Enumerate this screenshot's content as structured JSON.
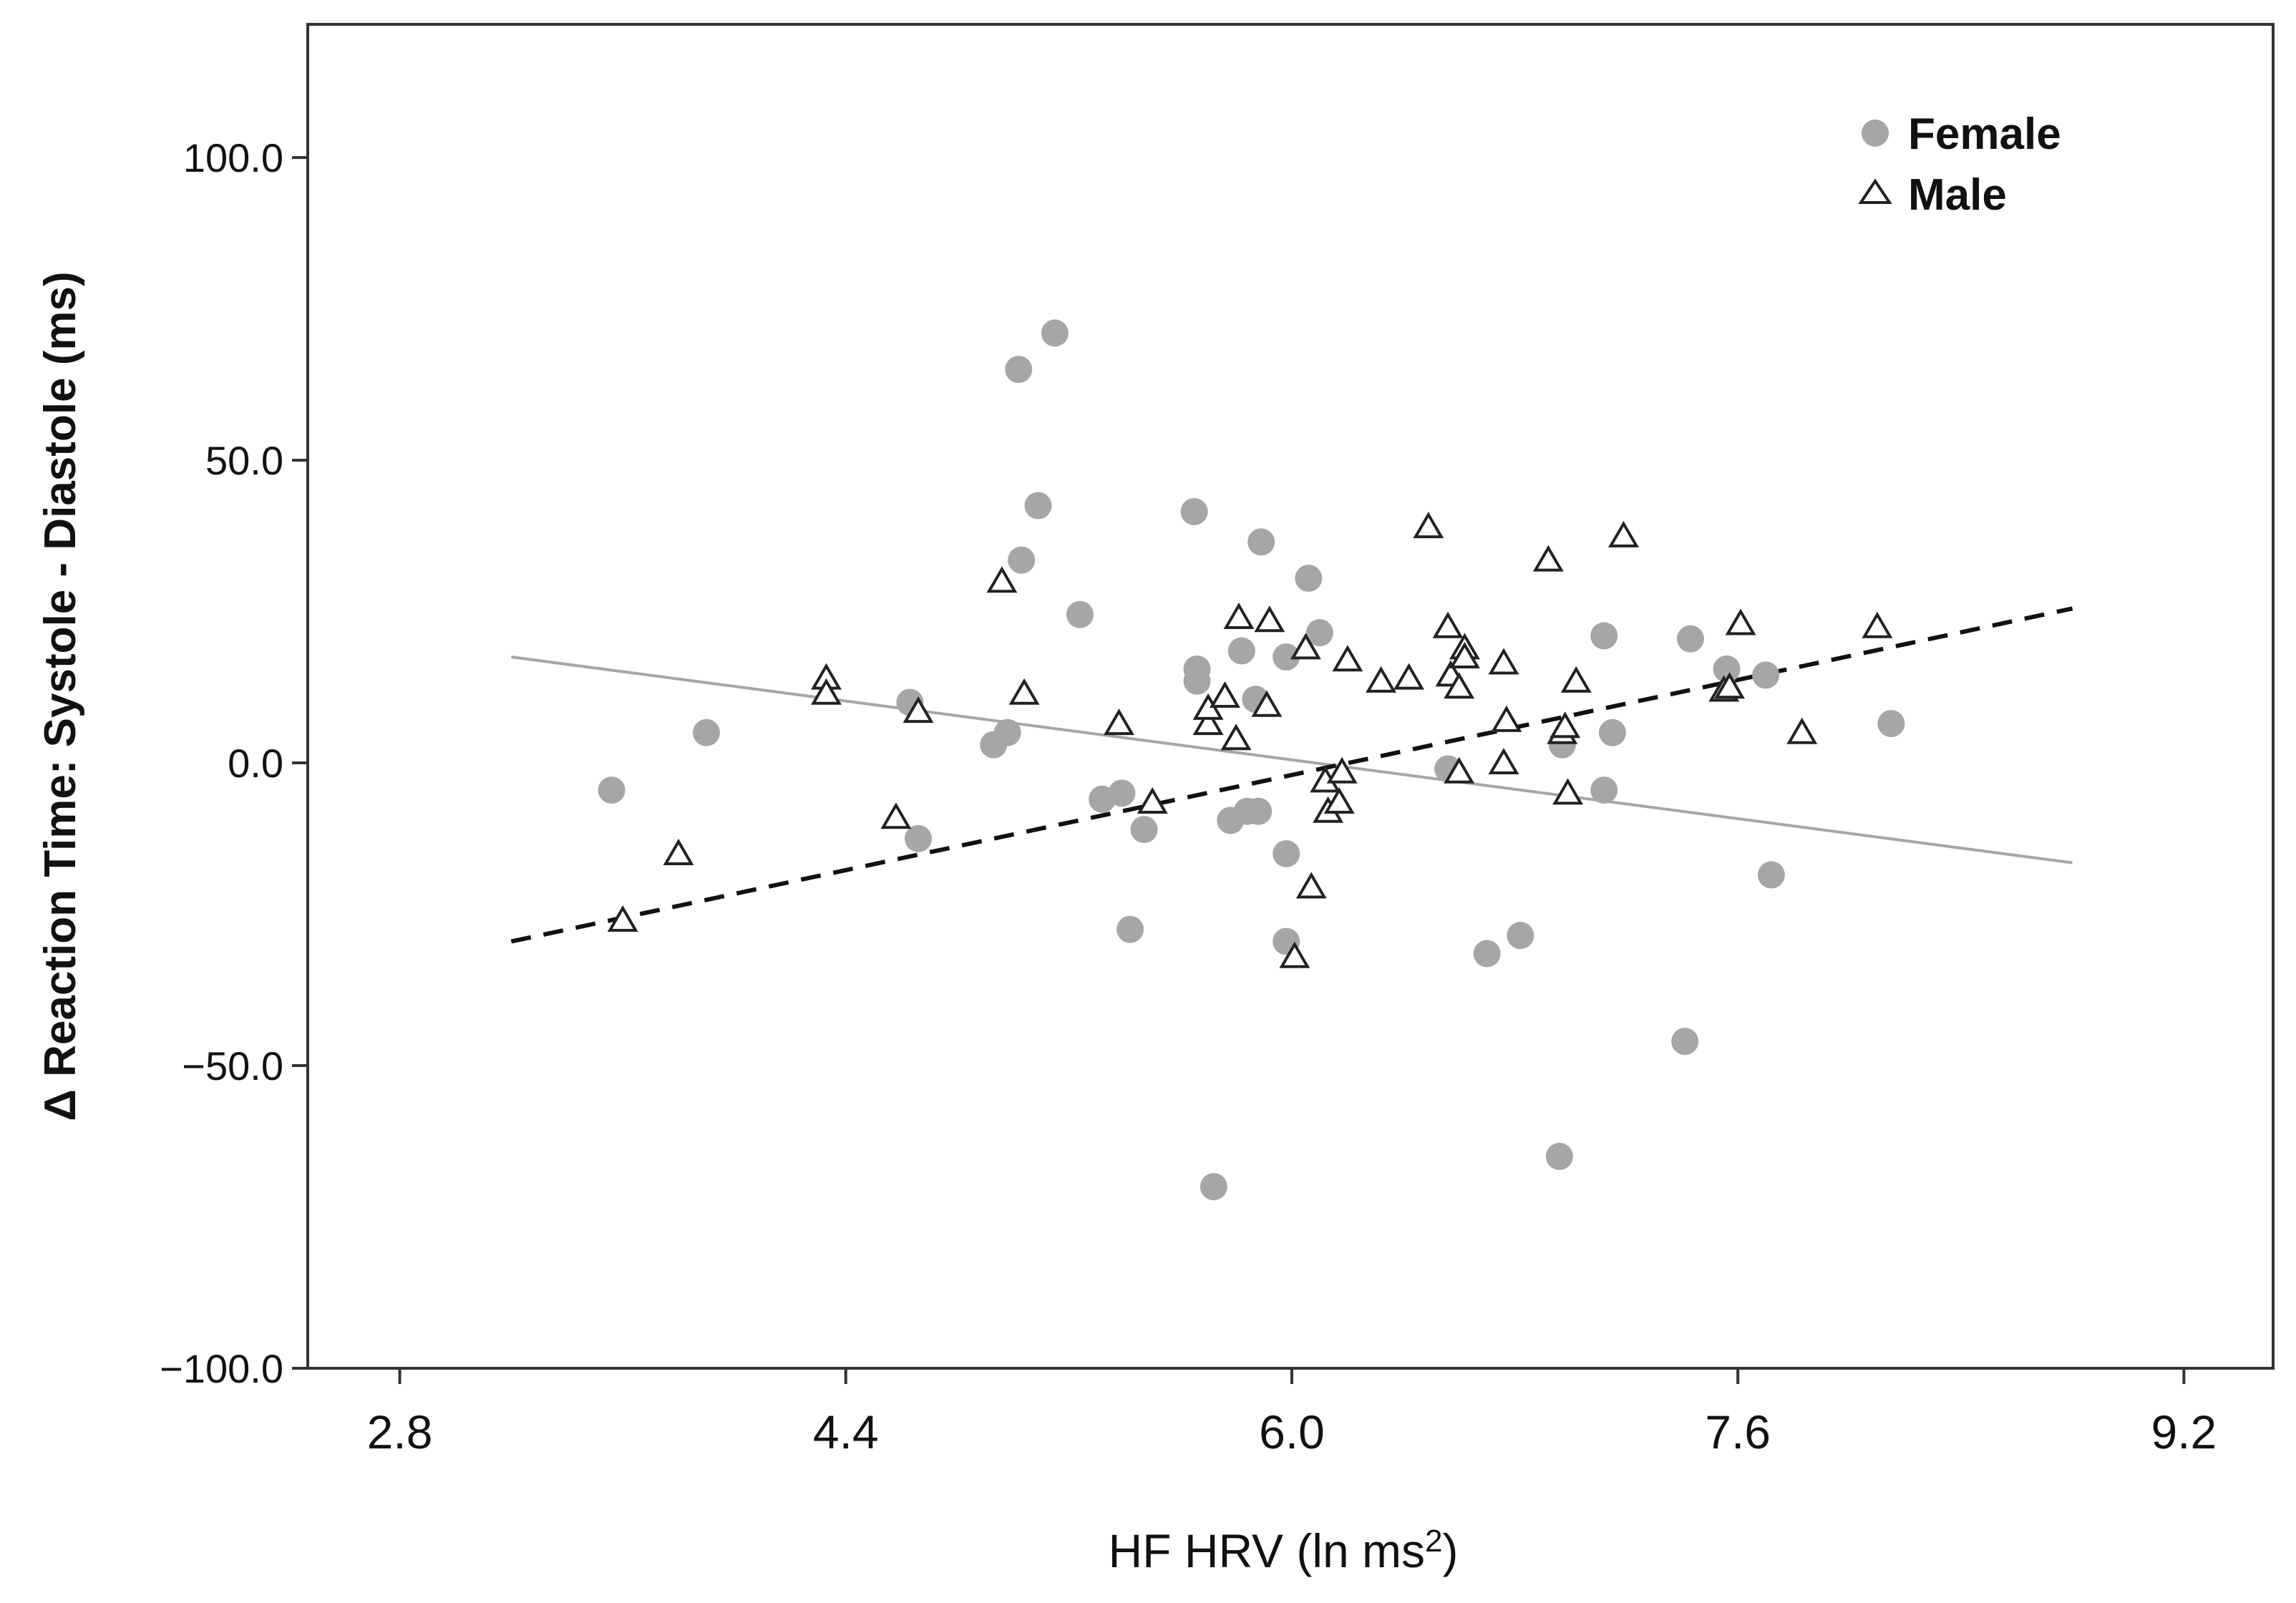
{
  "chart_data": {
    "type": "scatter",
    "title": "",
    "xlabel": "HF HRV (ln ms",
    "xlabel_sup": "2",
    "xlabel_suffix": ")",
    "ylabel": "Δ Reaction Time: Systole - Diastole (ms)",
    "xlim": [
      2.47,
      9.52
    ],
    "ylim": [
      -100,
      122
    ],
    "x_ticks": [
      2.8,
      4.4,
      6.0,
      7.6,
      9.2
    ],
    "x_tick_labels": [
      "2.8",
      "4.4",
      "6.0",
      "7.6",
      "9.2"
    ],
    "y_ticks": [
      -100,
      -50,
      0,
      50,
      100
    ],
    "y_tick_labels": [
      "−100.0",
      "−50.0",
      "0.0",
      "50.0",
      "100.0"
    ],
    "grid": false,
    "legend_position": "top-right",
    "colors": {
      "female": "#a6a6a6",
      "male": "#222222",
      "female_line": "#a6a6a6",
      "male_line": "#111111",
      "axis": "#333333"
    },
    "series": [
      {
        "name": "Female",
        "marker": "circle",
        "points": [
          [
            3.56,
            -4.5
          ],
          [
            3.9,
            5
          ],
          [
            5.15,
            71
          ],
          [
            5.02,
            65
          ],
          [
            5.09,
            42.5
          ],
          [
            5.03,
            33.5
          ],
          [
            4.63,
            10
          ],
          [
            4.66,
            -12.5
          ],
          [
            4.93,
            3
          ],
          [
            4.98,
            5
          ],
          [
            5.24,
            24.5
          ],
          [
            5.32,
            -6
          ],
          [
            5.39,
            -5
          ],
          [
            5.42,
            -27.5
          ],
          [
            5.47,
            -11
          ],
          [
            5.65,
            41.5
          ],
          [
            5.66,
            15.5
          ],
          [
            5.66,
            13.5
          ],
          [
            5.72,
            -70
          ],
          [
            5.78,
            -9.5
          ],
          [
            5.82,
            18.5
          ],
          [
            5.84,
            -8
          ],
          [
            5.88,
            -8
          ],
          [
            5.87,
            10.5
          ],
          [
            5.89,
            36.5
          ],
          [
            5.98,
            17.5
          ],
          [
            5.98,
            -15
          ],
          [
            5.98,
            -29.5
          ],
          [
            6.06,
            30.5
          ],
          [
            6.1,
            21.5
          ],
          [
            6.56,
            -1
          ],
          [
            6.7,
            -31.5
          ],
          [
            6.82,
            -28.5
          ],
          [
            6.96,
            -65
          ],
          [
            6.97,
            3
          ],
          [
            7.12,
            21
          ],
          [
            7.12,
            -4.5
          ],
          [
            7.15,
            5
          ],
          [
            7.41,
            -46
          ],
          [
            7.43,
            20.5
          ],
          [
            7.56,
            15.5
          ],
          [
            7.7,
            14.5
          ],
          [
            7.72,
            -18.5
          ],
          [
            8.15,
            6.5
          ]
        ]
      },
      {
        "name": "Male",
        "marker": "triangle",
        "points": [
          [
            3.6,
            -26
          ],
          [
            3.8,
            -15
          ],
          [
            4.33,
            14
          ],
          [
            4.33,
            11.5
          ],
          [
            4.58,
            -9
          ],
          [
            4.66,
            8.5
          ],
          [
            4.96,
            30
          ],
          [
            5.04,
            11.5
          ],
          [
            5.38,
            6.5
          ],
          [
            5.5,
            -6.5
          ],
          [
            5.7,
            6.5
          ],
          [
            5.7,
            9
          ],
          [
            5.76,
            11
          ],
          [
            5.8,
            4
          ],
          [
            5.81,
            24
          ],
          [
            5.91,
            9.5
          ],
          [
            5.92,
            23.5
          ],
          [
            6.01,
            -32
          ],
          [
            6.05,
            19
          ],
          [
            6.07,
            -20.5
          ],
          [
            6.12,
            -3
          ],
          [
            6.13,
            -8
          ],
          [
            6.17,
            -6.5
          ],
          [
            6.18,
            -1.5
          ],
          [
            6.2,
            17
          ],
          [
            6.32,
            13.5
          ],
          [
            6.42,
            14
          ],
          [
            6.49,
            39
          ],
          [
            6.56,
            22.5
          ],
          [
            6.57,
            14.5
          ],
          [
            6.6,
            12.5
          ],
          [
            6.6,
            -1.5
          ],
          [
            6.62,
            19
          ],
          [
            6.62,
            17.5
          ],
          [
            6.76,
            16.5
          ],
          [
            6.77,
            7
          ],
          [
            6.76,
            0
          ],
          [
            6.92,
            33.5
          ],
          [
            6.97,
            5
          ],
          [
            6.98,
            6
          ],
          [
            6.99,
            -5
          ],
          [
            7.02,
            13.5
          ],
          [
            7.19,
            37.5
          ],
          [
            7.55,
            12
          ],
          [
            7.57,
            12.5
          ],
          [
            7.61,
            23
          ],
          [
            7.83,
            5
          ],
          [
            8.1,
            22.5
          ]
        ]
      }
    ],
    "fit_lines": [
      {
        "name": "Female fit",
        "style": "solid",
        "x": [
          3.2,
          8.8
        ],
        "y": [
          17.5,
          -16.5
        ]
      },
      {
        "name": "Male fit",
        "style": "dashed",
        "x": [
          3.2,
          8.8
        ],
        "y": [
          -29.5,
          25.5
        ]
      }
    ]
  }
}
